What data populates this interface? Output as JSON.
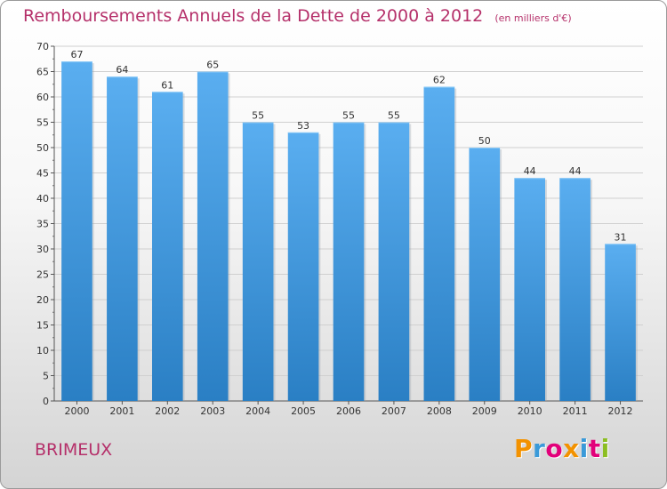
{
  "header": {
    "title": "Remboursements Annuels de la Dette de 2000 à 2012",
    "unit": "(en milliers d'€)"
  },
  "location": {
    "name": "BRIMEUX"
  },
  "brand": {
    "letters": [
      "P",
      "r",
      "o",
      "x",
      "i",
      "t",
      "i"
    ],
    "colors": [
      "#f39200",
      "#3a9ad9",
      "#e2007a",
      "#f39200",
      "#3a9ad9",
      "#e2007a",
      "#8cbe22"
    ]
  },
  "chart_data": {
    "type": "bar",
    "categories": [
      "2000",
      "2001",
      "2002",
      "2003",
      "2004",
      "2005",
      "2006",
      "2007",
      "2008",
      "2009",
      "2010",
      "2011",
      "2012"
    ],
    "values": [
      67,
      64,
      61,
      65,
      55,
      53,
      55,
      55,
      62,
      50,
      44,
      44,
      31
    ],
    "ylim": [
      0,
      70
    ],
    "yticks": [
      0,
      5,
      10,
      15,
      20,
      25,
      30,
      35,
      40,
      45,
      50,
      55,
      60,
      65,
      70
    ],
    "grid": true,
    "bar_color": "#3f97dc",
    "grid_color": "#d0d0d0",
    "text_color": "#333333"
  }
}
